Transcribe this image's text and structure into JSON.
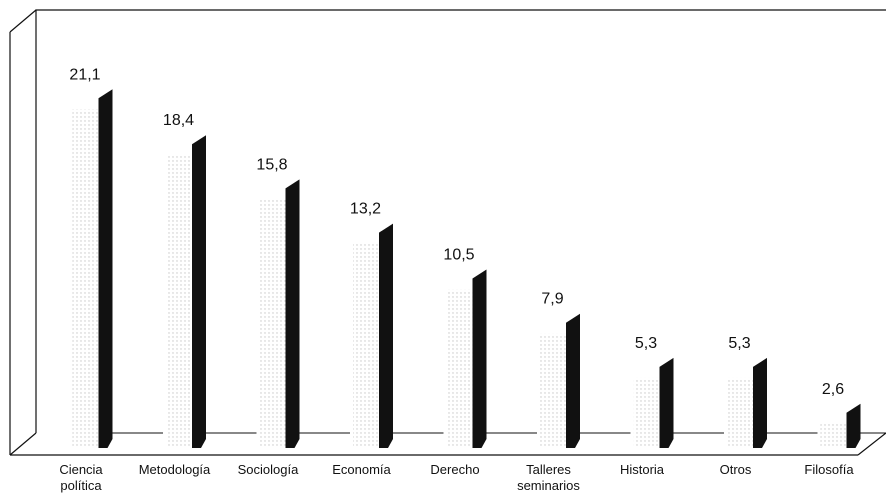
{
  "chart_data": {
    "type": "bar",
    "style": "3d-thin-bars",
    "categories": [
      [
        "Ciencia",
        "política"
      ],
      [
        "Metodología"
      ],
      [
        "Sociología"
      ],
      [
        "Economía"
      ],
      [
        "Derecho"
      ],
      [
        "Talleres",
        "seminarios"
      ],
      [
        "Historia"
      ],
      [
        "Otros"
      ],
      [
        "Filosofía"
      ]
    ],
    "values": [
      21.1,
      18.4,
      15.8,
      13.2,
      10.5,
      7.9,
      5.3,
      5.3,
      2.6
    ],
    "value_labels": [
      "21,1",
      "18,4",
      "15,8",
      "13,2",
      "10,5",
      "7,9",
      "5,3",
      "5,3",
      "2,6"
    ],
    "ylim": [
      0,
      25
    ],
    "grid": false,
    "legend": "none",
    "bar_color": "#111111"
  }
}
